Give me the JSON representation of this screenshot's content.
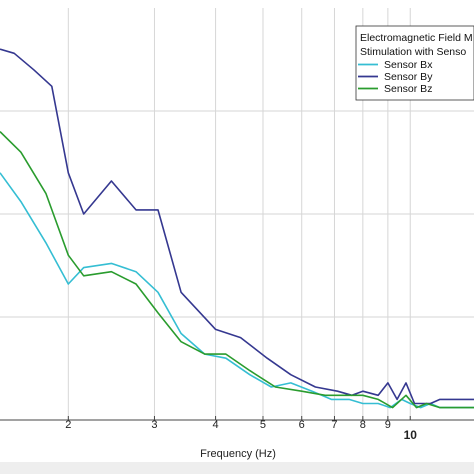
{
  "chart_data": {
    "type": "line",
    "xlabel": "Frequency (Hz)",
    "ylabel": "",
    "x_scale": "log",
    "xlim": [
      1.45,
      13.5
    ],
    "ylim": [
      0,
      100
    ],
    "grid": true,
    "legend_position": "top-right",
    "legend_title": [
      "Electromagnetic Field M",
      "Stimulation with Senso"
    ],
    "x_ticks": [
      {
        "value": 2,
        "label": "2"
      },
      {
        "value": 3,
        "label": "3"
      },
      {
        "value": 4,
        "label": "4"
      },
      {
        "value": 5,
        "label": "5"
      },
      {
        "value": 6,
        "label": "6"
      },
      {
        "value": 7,
        "label": "7"
      },
      {
        "value": 8,
        "label": "8"
      },
      {
        "value": 9,
        "label": "9"
      },
      {
        "value": 10,
        "label": "10"
      }
    ],
    "y_grid": [
      0,
      25,
      50,
      75
    ],
    "series": [
      {
        "name": "Sensor Bx",
        "color": "#35bed3",
        "x": [
          1.45,
          1.6,
          1.8,
          2.0,
          2.15,
          2.45,
          2.75,
          3.05,
          3.4,
          3.8,
          4.2,
          4.7,
          5.2,
          5.7,
          6.3,
          6.9,
          7.5,
          8.0,
          8.6,
          9.1,
          9.6,
          10.0,
          10.5,
          11.0,
          11.5,
          12.0,
          13.0,
          13.5
        ],
        "y": [
          60,
          53,
          43,
          33,
          37,
          38,
          36,
          31,
          21,
          16,
          15,
          11,
          8,
          9,
          7,
          5,
          5,
          4,
          4,
          3,
          5,
          4,
          3,
          4,
          3,
          3,
          3,
          3
        ]
      },
      {
        "name": "Sensor By",
        "color": "#353890",
        "x": [
          1.45,
          1.55,
          1.7,
          1.85,
          2.0,
          2.15,
          2.45,
          2.75,
          3.05,
          3.4,
          4.0,
          4.5,
          5.1,
          5.7,
          6.4,
          7.1,
          7.6,
          8.0,
          8.6,
          9.0,
          9.4,
          9.8,
          10.2,
          10.6,
          11.0,
          11.5,
          12.0,
          13.0,
          13.5
        ],
        "y": [
          90,
          89,
          85,
          81,
          60,
          50,
          58,
          51,
          51,
          31,
          22,
          20,
          15,
          11,
          8,
          7,
          6,
          7,
          6,
          9,
          5,
          9,
          4,
          4,
          4,
          5,
          5,
          5,
          5
        ]
      },
      {
        "name": "Sensor Bz",
        "color": "#2a9c2e",
        "x": [
          1.45,
          1.6,
          1.8,
          2.0,
          2.15,
          2.45,
          2.75,
          3.05,
          3.4,
          3.8,
          4.2,
          4.7,
          5.3,
          6.0,
          6.7,
          7.4,
          8.0,
          8.6,
          9.2,
          9.8,
          10.3,
          10.8,
          11.5,
          12.2,
          13.0,
          13.5
        ],
        "y": [
          70,
          65,
          55,
          40,
          35,
          36,
          33,
          26,
          19,
          16,
          16,
          12,
          8,
          7,
          6,
          6,
          6,
          5,
          3,
          6,
          3,
          4,
          3,
          3,
          3,
          3
        ]
      }
    ]
  }
}
